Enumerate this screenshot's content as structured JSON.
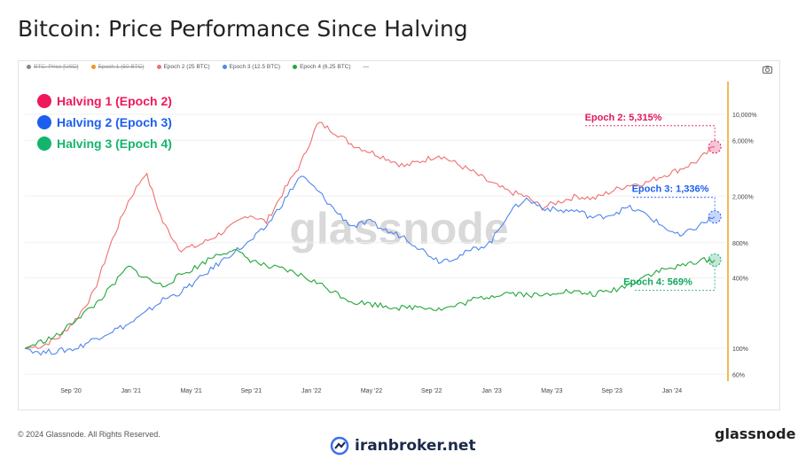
{
  "title": "Bitcoin: Price Performance Since Halving",
  "legend": [
    {
      "label": "BTC: Price [USD]",
      "color": "#888888",
      "struck": true
    },
    {
      "label": "Epoch 1 (50 BTC)",
      "color": "#f7931a",
      "struck": true
    },
    {
      "label": "Epoch 2 (25 BTC)",
      "color": "#f07070",
      "struck": false
    },
    {
      "label": "Epoch 3 (12.5 BTC)",
      "color": "#4f86f0",
      "struck": false
    },
    {
      "label": "Epoch 4 (6.25 BTC)",
      "color": "#22a63a",
      "struck": false
    }
  ],
  "halvings": [
    {
      "label": "Halving 1 (Epoch 2)",
      "color": "#f0185a"
    },
    {
      "label": "Halving 2 (Epoch 3)",
      "color": "#1d5ef0"
    },
    {
      "label": "Halving 3 (Epoch 4)",
      "color": "#13b56b"
    }
  ],
  "annotations": [
    {
      "label": "Epoch 2: 5,315%",
      "color": "#e0185a"
    },
    {
      "label": "Epoch 3: 1,336%",
      "color": "#1d5ef0"
    },
    {
      "label": "Epoch 4: 569%",
      "color": "#13a860"
    }
  ],
  "watermark": "glassnode",
  "footer_copyright": "© 2024 Glassnode. All Rights Reserved.",
  "footer_brand": "glassnode",
  "broker_brand": "iranbroker.net",
  "chart_data": {
    "type": "line",
    "y_scale": "log",
    "x_tick_labels": [
      "Sep '20",
      "Jan '21",
      "May '21",
      "Sep '21",
      "Jan '22",
      "May '22",
      "Sep '22",
      "Jan '23",
      "May '23",
      "Sep '23",
      "Jan '24"
    ],
    "y_tick_labels": [
      "10,000%",
      "6,000%",
      "2,000%",
      "800%",
      "400%",
      "100%",
      "60%"
    ],
    "y_tick_values": [
      10000,
      6000,
      2000,
      800,
      400,
      100,
      60
    ],
    "series": [
      {
        "name": "Epoch 2 (25 BTC)",
        "color": "#f07070",
        "values": [
          100,
          105,
          125,
          180,
          300,
          800,
          1800,
          3200,
          1200,
          700,
          750,
          900,
          1100,
          1400,
          1200,
          2200,
          3800,
          8500,
          7000,
          5500,
          4800,
          4200,
          3600,
          4000,
          4500,
          3800,
          3200,
          2600,
          2200,
          2000,
          1600,
          1800,
          2000,
          1900,
          2200,
          2500,
          2600,
          3000,
          3400,
          4000,
          5315
        ]
      },
      {
        "name": "Epoch 3 (12.5 BTC)",
        "color": "#4f86f0",
        "values": [
          100,
          92,
          95,
          100,
          120,
          140,
          160,
          200,
          260,
          300,
          380,
          500,
          650,
          800,
          1100,
          1800,
          3000,
          2200,
          1500,
          1100,
          1200,
          1000,
          900,
          700,
          560,
          600,
          700,
          800,
          1400,
          1900,
          1600,
          1500,
          1500,
          1300,
          1400,
          1600,
          1400,
          1100,
          900,
          1100,
          1336
        ]
      },
      {
        "name": "Epoch 4 (6.25 BTC)",
        "color": "#22a63a",
        "values": [
          100,
          115,
          130,
          180,
          230,
          330,
          500,
          400,
          340,
          420,
          500,
          620,
          700,
          580,
          500,
          470,
          420,
          360,
          300,
          250,
          240,
          230,
          220,
          230,
          215,
          230,
          260,
          280,
          300,
          290,
          280,
          310,
          300,
          290,
          310,
          350,
          420,
          470,
          500,
          560,
          569
        ]
      }
    ]
  }
}
